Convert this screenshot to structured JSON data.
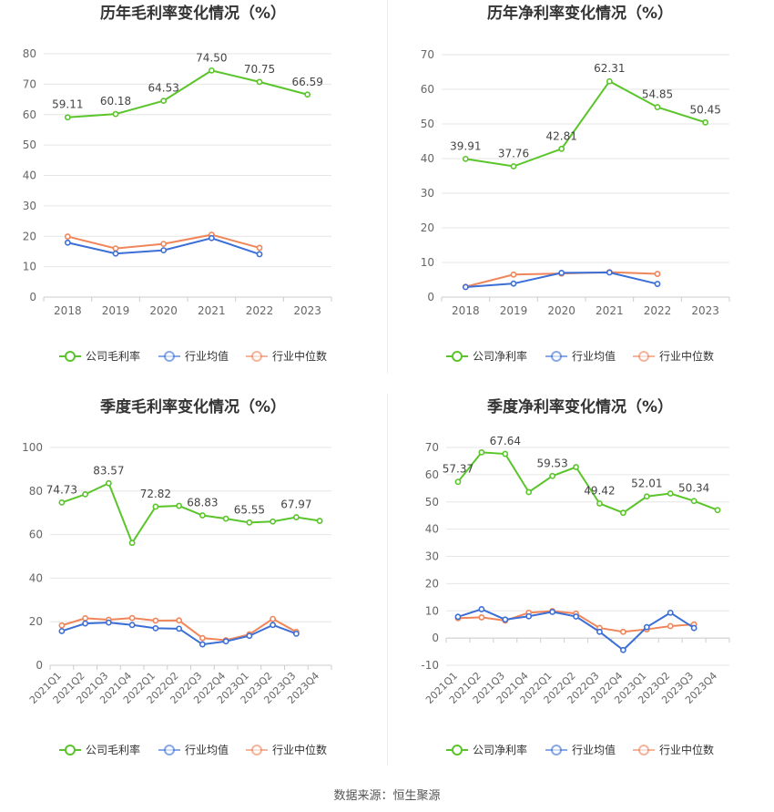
{
  "colors": {
    "company": "#5ac52a",
    "avg": "#3c6fd6",
    "median": "#f0855a",
    "grid": "#e6e6e6",
    "axis": "#cccccc",
    "text": "#666666"
  },
  "footer": "数据来源：恒生聚源",
  "chart_data": [
    {
      "id": "annual-gross",
      "type": "line",
      "title": "历年毛利率变化情况（%）",
      "categories": [
        "2018",
        "2019",
        "2020",
        "2021",
        "2022",
        "2023"
      ],
      "ylim": [
        0,
        80
      ],
      "yticks": [
        0,
        10,
        20,
        30,
        40,
        50,
        60,
        70,
        80
      ],
      "legend_position": "bottom",
      "series": [
        {
          "name": "公司毛利率",
          "values": [
            59.11,
            60.18,
            64.53,
            74.5,
            70.75,
            66.59
          ],
          "labels": [
            "59.11",
            "60.18",
            "64.53",
            "74.50",
            "70.75",
            "66.59"
          ],
          "color": "#5ac52a"
        },
        {
          "name": "行业均值",
          "values": [
            17.9,
            14.3,
            15.4,
            19.4,
            14.1,
            null
          ],
          "color": "#3c6fd6"
        },
        {
          "name": "行业中位数",
          "values": [
            19.9,
            16.0,
            17.5,
            20.5,
            16.2,
            null
          ],
          "color": "#f0855a"
        }
      ]
    },
    {
      "id": "annual-net",
      "type": "line",
      "title": "历年净利率变化情况（%）",
      "categories": [
        "2018",
        "2019",
        "2020",
        "2021",
        "2022",
        "2023"
      ],
      "ylim": [
        0,
        70
      ],
      "yticks": [
        0,
        10,
        20,
        30,
        40,
        50,
        60,
        70
      ],
      "legend_position": "bottom",
      "series": [
        {
          "name": "公司净利率",
          "values": [
            39.91,
            37.76,
            42.81,
            62.31,
            54.85,
            50.45
          ],
          "labels": [
            "39.91",
            "37.76",
            "42.81",
            "62.31",
            "54.85",
            "50.45"
          ],
          "color": "#5ac52a"
        },
        {
          "name": "行业均值",
          "values": [
            2.9,
            3.9,
            7.0,
            7.1,
            3.8,
            null
          ],
          "color": "#3c6fd6"
        },
        {
          "name": "行业中位数",
          "values": [
            3.0,
            6.5,
            6.8,
            7.2,
            6.7,
            null
          ],
          "color": "#f0855a"
        }
      ]
    },
    {
      "id": "quarterly-gross",
      "type": "line",
      "title": "季度毛利率变化情况（%）",
      "categories": [
        "2021Q1",
        "2021Q2",
        "2021Q3",
        "2021Q4",
        "2022Q1",
        "2022Q2",
        "2022Q3",
        "2022Q4",
        "2023Q1",
        "2023Q2",
        "2023Q3",
        "2023Q4"
      ],
      "ylim": [
        0,
        100
      ],
      "yticks": [
        0,
        20,
        40,
        60,
        80,
        100
      ],
      "legend_position": "bottom",
      "series": [
        {
          "name": "公司毛利率",
          "values": [
            74.73,
            78.5,
            83.57,
            56.2,
            72.82,
            73.2,
            68.83,
            67.3,
            65.55,
            66.0,
            67.97,
            66.3
          ],
          "labels": [
            "74.73",
            "",
            "83.57",
            "",
            "72.82",
            "",
            "68.83",
            "",
            "65.55",
            "",
            "67.97",
            ""
          ],
          "color": "#5ac52a"
        },
        {
          "name": "行业均值",
          "values": [
            15.7,
            19.2,
            19.6,
            18.5,
            17.0,
            16.8,
            9.6,
            11.0,
            13.5,
            18.5,
            14.5,
            null
          ],
          "color": "#3c6fd6"
        },
        {
          "name": "行业中位数",
          "values": [
            18.3,
            21.6,
            20.9,
            21.7,
            20.5,
            20.6,
            12.5,
            11.5,
            14.2,
            21.3,
            15.3,
            null
          ],
          "color": "#f0855a"
        }
      ]
    },
    {
      "id": "quarterly-net",
      "type": "line",
      "title": "季度净利率变化情况（%）",
      "categories": [
        "2021Q1",
        "2021Q2",
        "2021Q3",
        "2021Q4",
        "2022Q1",
        "2022Q2",
        "2022Q3",
        "2022Q4",
        "2023Q1",
        "2023Q2",
        "2023Q3",
        "2023Q4"
      ],
      "ylim": [
        -10,
        70
      ],
      "yticks": [
        -10,
        0,
        10,
        20,
        30,
        40,
        50,
        60,
        70
      ],
      "legend_position": "bottom",
      "series": [
        {
          "name": "公司净利率",
          "values": [
            57.37,
            68.2,
            67.64,
            53.6,
            59.53,
            62.8,
            49.42,
            46.0,
            52.01,
            53.1,
            50.34,
            47.0
          ],
          "labels": [
            "57.37",
            "",
            "67.64",
            "",
            "59.53",
            "",
            "49.42",
            "",
            "52.01",
            "",
            "50.34",
            ""
          ],
          "color": "#5ac52a"
        },
        {
          "name": "行业均值",
          "values": [
            7.8,
            10.6,
            6.8,
            8.0,
            9.6,
            7.9,
            2.3,
            -4.4,
            4.0,
            9.3,
            3.7,
            null
          ],
          "color": "#3c6fd6"
        },
        {
          "name": "行业中位数",
          "values": [
            7.3,
            7.6,
            6.4,
            9.3,
            9.9,
            9.0,
            3.7,
            2.3,
            3.2,
            4.4,
            5.0,
            null
          ],
          "color": "#f0855a"
        }
      ]
    }
  ]
}
